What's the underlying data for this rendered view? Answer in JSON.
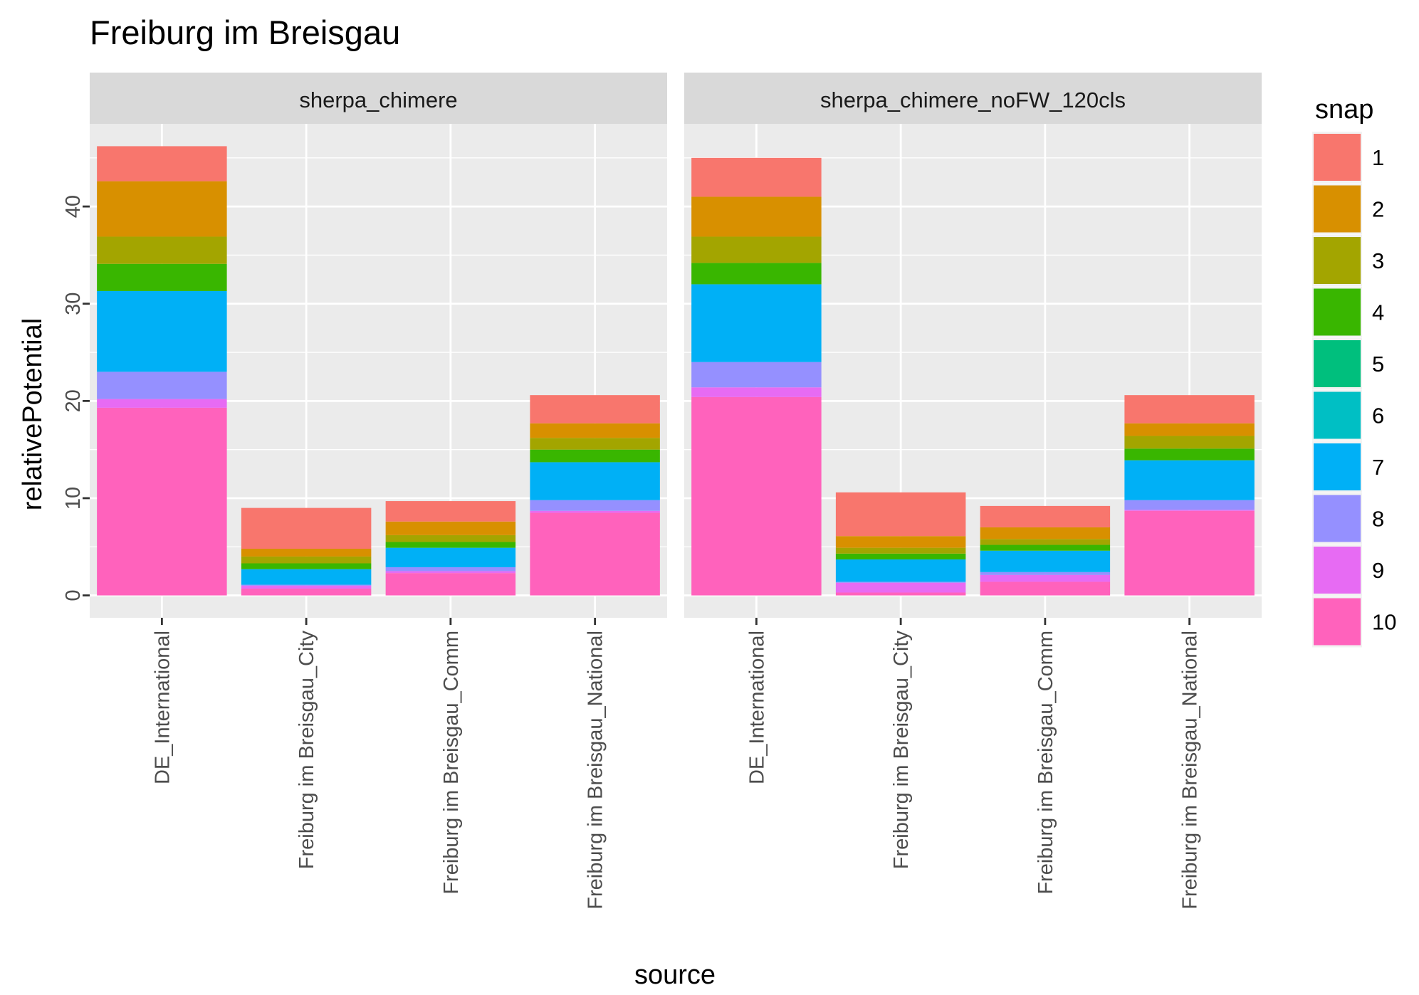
{
  "chart_data": {
    "type": "bar",
    "stacked": true,
    "title": "Freiburg im Breisgau",
    "xlabel": "source",
    "ylabel": "relativePotential",
    "ylim": [
      -2.3,
      48.5
    ],
    "yticks": [
      0,
      10,
      20,
      30,
      40
    ],
    "grid": true,
    "legend": {
      "title": "snap",
      "position": "right",
      "entries": [
        {
          "label": "1",
          "color": "#F8766D"
        },
        {
          "label": "2",
          "color": "#D89000"
        },
        {
          "label": "3",
          "color": "#A3A500"
        },
        {
          "label": "4",
          "color": "#39B600"
        },
        {
          "label": "5",
          "color": "#00BF7D"
        },
        {
          "label": "6",
          "color": "#00BFC4"
        },
        {
          "label": "7",
          "color": "#00B0F6"
        },
        {
          "label": "8",
          "color": "#9590FF"
        },
        {
          "label": "9",
          "color": "#E76BF3"
        },
        {
          "label": "10",
          "color": "#FF62BC"
        }
      ]
    },
    "categories": [
      "DE_International",
      "Freiburg im Breisgau_City",
      "Freiburg im Breisgau_Comm",
      "Freiburg im Breisgau_National"
    ],
    "panels": [
      {
        "name": "sherpa_chimere",
        "series": [
          {
            "snap": "10",
            "values": [
              19.3,
              0.7,
              2.3,
              8.5
            ]
          },
          {
            "snap": "9",
            "values": [
              0.9,
              0.3,
              0.2,
              0.2
            ]
          },
          {
            "snap": "8",
            "values": [
              2.8,
              0.1,
              0.4,
              1.1
            ]
          },
          {
            "snap": "7",
            "values": [
              8.3,
              1.6,
              2.0,
              3.9
            ]
          },
          {
            "snap": "6",
            "values": [
              0.0,
              0.0,
              0.0,
              0.0
            ]
          },
          {
            "snap": "5",
            "values": [
              0.0,
              0.0,
              0.0,
              0.0
            ]
          },
          {
            "snap": "4",
            "values": [
              2.8,
              0.6,
              0.6,
              1.3
            ]
          },
          {
            "snap": "3",
            "values": [
              2.8,
              0.7,
              0.7,
              1.2
            ]
          },
          {
            "snap": "2",
            "values": [
              5.7,
              0.8,
              1.4,
              1.5
            ]
          },
          {
            "snap": "1",
            "values": [
              3.6,
              4.2,
              2.1,
              2.9
            ]
          }
        ]
      },
      {
        "name": "sherpa_chimere_noFW_120cls",
        "series": [
          {
            "snap": "10",
            "values": [
              20.4,
              0.3,
              1.4,
              8.7
            ]
          },
          {
            "snap": "9",
            "values": [
              1.0,
              1.0,
              0.7,
              0.1
            ]
          },
          {
            "snap": "8",
            "values": [
              2.6,
              0.1,
              0.3,
              1.0
            ]
          },
          {
            "snap": "7",
            "values": [
              8.0,
              2.3,
              2.2,
              4.1
            ]
          },
          {
            "snap": "6",
            "values": [
              0.0,
              0.0,
              0.0,
              0.0
            ]
          },
          {
            "snap": "5",
            "values": [
              0.0,
              0.0,
              0.0,
              0.0
            ]
          },
          {
            "snap": "4",
            "values": [
              2.2,
              0.6,
              0.6,
              1.2
            ]
          },
          {
            "snap": "3",
            "values": [
              2.7,
              0.6,
              0.6,
              1.3
            ]
          },
          {
            "snap": "2",
            "values": [
              4.1,
              1.2,
              1.2,
              1.3
            ]
          },
          {
            "snap": "1",
            "values": [
              4.0,
              4.5,
              2.2,
              2.9
            ]
          }
        ]
      }
    ]
  }
}
